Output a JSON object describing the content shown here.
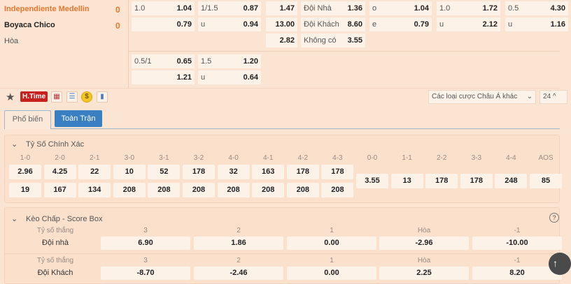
{
  "match": {
    "home": "Independiente Medellin",
    "away": "Boyaca Chico",
    "draw": "Hòa",
    "home_score": "0",
    "away_score": "0"
  },
  "odds_top": [
    [
      [
        "1.0",
        "1.04"
      ],
      [
        "",
        "0.79"
      ]
    ],
    [
      [
        "1/1.5",
        "0.87"
      ],
      [
        "u",
        "0.94"
      ]
    ],
    [
      [
        "",
        "1.47"
      ],
      [
        "",
        "13.00"
      ],
      [
        "",
        "2.82"
      ]
    ],
    [
      [
        "Đội Nhà",
        "1.36"
      ],
      [
        "Đội Khách",
        "8.60"
      ],
      [
        "Không có",
        "3.55"
      ]
    ],
    [
      [
        "o",
        "1.04"
      ],
      [
        "e",
        "0.79"
      ]
    ],
    [
      [
        "1.0",
        "1.72"
      ],
      [
        "u",
        "2.12"
      ]
    ],
    [
      [
        "0.5",
        "4.30"
      ],
      [
        "u",
        "1.16"
      ]
    ]
  ],
  "odds_second": [
    [
      [
        "0.5/1",
        "0.65"
      ],
      [
        "",
        "1.21"
      ]
    ],
    [
      [
        "1.5",
        "1.20"
      ],
      [
        "u",
        "0.64"
      ]
    ]
  ],
  "toolbar": {
    "htime": "H.Time",
    "dropdown": "Các loại cược Châu Á khác",
    "count": "24",
    "colors": {
      "htime": "#c8201e",
      "tab_active_bg": "#3a7fc1",
      "accent": "#e8772e"
    }
  },
  "tabs": [
    {
      "label": "Phổ biến",
      "active": false
    },
    {
      "label": "Toàn Trận",
      "active": true
    }
  ],
  "correct_score": {
    "title": "Tỷ Số Chính Xác",
    "columns": [
      "1-0",
      "2-0",
      "2-1",
      "3-0",
      "3-1",
      "3-2",
      "4-0",
      "4-1",
      "4-2",
      "4-3"
    ],
    "home": [
      "2.96",
      "4.25",
      "22",
      "10",
      "52",
      "178",
      "32",
      "163",
      "178",
      "178"
    ],
    "away": [
      "19",
      "167",
      "134",
      "208",
      "208",
      "208",
      "208",
      "208",
      "208",
      "208"
    ],
    "draw_columns": [
      "0-0",
      "1-1",
      "2-2",
      "3-3",
      "4-4",
      "AOS"
    ],
    "draw": [
      "3.55",
      "13",
      "178",
      "178",
      "248",
      "85"
    ]
  },
  "score_box": {
    "title": "Kèo Chấp - Score Box",
    "row_label": "Tỷ số thắng",
    "columns": [
      "3",
      "2",
      "1",
      "Hòa",
      "-1"
    ],
    "rows": [
      {
        "team": "Đội nhà",
        "values": [
          "6.90",
          "1.86",
          "0.00",
          "-2.96",
          "-10.00"
        ]
      },
      {
        "team": "Đội Khách",
        "values": [
          "-8.70",
          "-2.46",
          "0.00",
          "2.25",
          "8.20"
        ]
      }
    ]
  }
}
